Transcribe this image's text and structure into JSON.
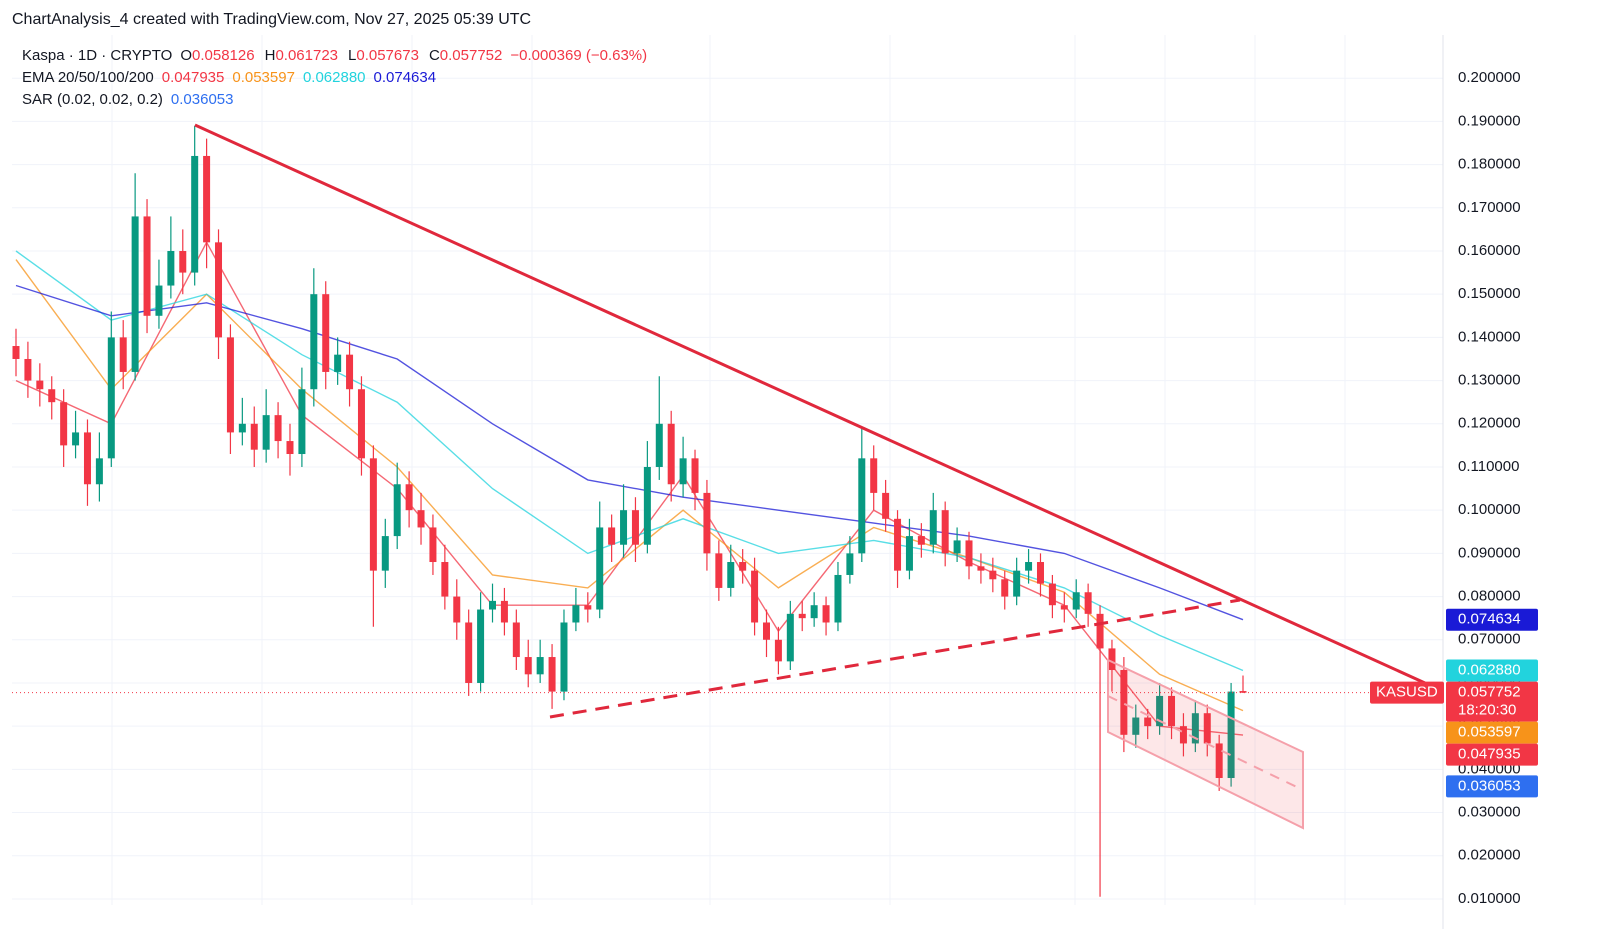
{
  "chart_data": {
    "type": "candlestick",
    "header": "ChartAnalysis_4 created with TradingView.com, Nov 27, 2025 05:39 UTC",
    "symbol": "Kaspa · 1D · CRYPTO",
    "ohlc_labels": [
      "O",
      "H",
      "L",
      "C"
    ],
    "change": "−0.000369 (−0.63%)",
    "up_color": "#089981",
    "down_color": "#f23645",
    "open": [
      0.138,
      0.135,
      0.13,
      0.128,
      0.125,
      0.115,
      0.118,
      0.106,
      0.112,
      0.14,
      0.132,
      0.168,
      0.145,
      0.152,
      0.16,
      0.155,
      0.182,
      0.162,
      0.14,
      0.118,
      0.12,
      0.114,
      0.122,
      0.116,
      0.113,
      0.128,
      0.15,
      0.132,
      0.136,
      0.128,
      0.112,
      0.086,
      0.094,
      0.106,
      0.1,
      0.096,
      0.088,
      0.08,
      0.074,
      0.06,
      0.077,
      0.079,
      0.074,
      0.066,
      0.062,
      0.066,
      0.058,
      0.074,
      0.078,
      0.077,
      0.096,
      0.092,
      0.1,
      0.092,
      0.11,
      0.12,
      0.106,
      0.112,
      0.104,
      0.09,
      0.082,
      0.088,
      0.086,
      0.074,
      0.07,
      0.065,
      0.076,
      0.075,
      0.078,
      0.074,
      0.085,
      0.09,
      0.112,
      0.104,
      0.098,
      0.086,
      0.094,
      0.092,
      0.1,
      0.09,
      0.093,
      0.087,
      0.086,
      0.084,
      0.08,
      0.086,
      0.088,
      0.083,
      0.078,
      0.077,
      0.081,
      0.076,
      0.068,
      0.063,
      0.048,
      0.052,
      0.05,
      0.057,
      0.05,
      0.046,
      0.053,
      0.046,
      0.038,
      0.058126
    ],
    "high": [
      0.142,
      0.139,
      0.134,
      0.131,
      0.128,
      0.123,
      0.121,
      0.118,
      0.146,
      0.144,
      0.178,
      0.172,
      0.158,
      0.168,
      0.165,
      0.189,
      0.186,
      0.165,
      0.143,
      0.126,
      0.124,
      0.128,
      0.125,
      0.12,
      0.133,
      0.156,
      0.153,
      0.14,
      0.139,
      0.131,
      0.115,
      0.098,
      0.111,
      0.109,
      0.104,
      0.099,
      0.092,
      0.084,
      0.077,
      0.081,
      0.083,
      0.082,
      0.077,
      0.07,
      0.07,
      0.069,
      0.077,
      0.082,
      0.081,
      0.102,
      0.099,
      0.106,
      0.103,
      0.116,
      0.131,
      0.123,
      0.117,
      0.114,
      0.107,
      0.093,
      0.092,
      0.091,
      0.089,
      0.077,
      0.073,
      0.079,
      0.079,
      0.081,
      0.08,
      0.088,
      0.094,
      0.119,
      0.115,
      0.107,
      0.1,
      0.098,
      0.097,
      0.104,
      0.102,
      0.096,
      0.095,
      0.09,
      0.089,
      0.086,
      0.089,
      0.091,
      0.09,
      0.085,
      0.081,
      0.084,
      0.083,
      0.078,
      0.07,
      0.066,
      0.055,
      0.054,
      0.06,
      0.059,
      0.053,
      0.056,
      0.055,
      0.048,
      0.06,
      0.061723
    ],
    "low": [
      0.131,
      0.126,
      0.124,
      0.121,
      0.11,
      0.112,
      0.101,
      0.102,
      0.11,
      0.128,
      0.13,
      0.141,
      0.142,
      0.149,
      0.15,
      0.152,
      0.156,
      0.135,
      0.113,
      0.115,
      0.11,
      0.111,
      0.112,
      0.108,
      0.11,
      0.124,
      0.128,
      0.129,
      0.124,
      0.108,
      0.073,
      0.082,
      0.091,
      0.096,
      0.092,
      0.085,
      0.077,
      0.07,
      0.057,
      0.058,
      0.074,
      0.071,
      0.063,
      0.059,
      0.06,
      0.054,
      0.056,
      0.072,
      0.074,
      0.075,
      0.088,
      0.089,
      0.088,
      0.09,
      0.107,
      0.102,
      0.103,
      0.1,
      0.086,
      0.079,
      0.08,
      0.083,
      0.071,
      0.066,
      0.062,
      0.063,
      0.072,
      0.073,
      0.071,
      0.072,
      0.083,
      0.088,
      0.1,
      0.095,
      0.082,
      0.084,
      0.089,
      0.09,
      0.087,
      0.088,
      0.084,
      0.083,
      0.081,
      0.077,
      0.078,
      0.083,
      0.08,
      0.075,
      0.074,
      0.075,
      0.073,
      0.0105,
      0.058,
      0.044,
      0.045,
      0.047,
      0.048,
      0.047,
      0.043,
      0.044,
      0.043,
      0.035,
      0.036,
      0.057673
    ],
    "close": [
      0.135,
      0.13,
      0.128,
      0.125,
      0.115,
      0.118,
      0.106,
      0.112,
      0.14,
      0.132,
      0.168,
      0.145,
      0.152,
      0.16,
      0.155,
      0.182,
      0.162,
      0.14,
      0.118,
      0.12,
      0.114,
      0.122,
      0.116,
      0.113,
      0.128,
      0.15,
      0.132,
      0.136,
      0.128,
      0.112,
      0.086,
      0.094,
      0.106,
      0.1,
      0.096,
      0.088,
      0.08,
      0.074,
      0.06,
      0.077,
      0.079,
      0.074,
      0.066,
      0.062,
      0.066,
      0.058,
      0.074,
      0.078,
      0.077,
      0.096,
      0.092,
      0.1,
      0.092,
      0.11,
      0.12,
      0.106,
      0.112,
      0.104,
      0.09,
      0.082,
      0.088,
      0.086,
      0.074,
      0.07,
      0.065,
      0.076,
      0.075,
      0.078,
      0.074,
      0.085,
      0.09,
      0.112,
      0.104,
      0.098,
      0.086,
      0.094,
      0.092,
      0.1,
      0.09,
      0.093,
      0.087,
      0.086,
      0.084,
      0.08,
      0.086,
      0.088,
      0.083,
      0.078,
      0.077,
      0.081,
      0.076,
      0.068,
      0.063,
      0.048,
      0.052,
      0.05,
      0.057,
      0.05,
      0.046,
      0.053,
      0.046,
      0.038,
      0.058,
      0.057752
    ],
    "ema_title": "EMA 20/50/100/200",
    "ema_x": [
      0,
      8,
      16,
      24,
      32,
      40,
      48,
      56,
      64,
      72,
      80,
      88,
      96,
      103
    ],
    "ema": [
      {
        "color": "#f23645",
        "label": "0.047935",
        "values": [
          0.13,
          0.12,
          0.162,
          0.122,
          0.105,
          0.078,
          0.078,
          0.108,
          0.072,
          0.1,
          0.088,
          0.078,
          0.05,
          0.047935
        ]
      },
      {
        "color": "#f7931a",
        "label": "0.053597",
        "values": [
          0.158,
          0.128,
          0.15,
          0.128,
          0.11,
          0.085,
          0.082,
          0.1,
          0.082,
          0.096,
          0.089,
          0.081,
          0.062,
          0.053597
        ]
      },
      {
        "color": "#22d3dd",
        "label": "0.062880",
        "values": [
          0.16,
          0.144,
          0.15,
          0.136,
          0.125,
          0.105,
          0.09,
          0.098,
          0.09,
          0.093,
          0.089,
          0.082,
          0.071,
          0.06288
        ]
      },
      {
        "color": "#1a1ad6",
        "label": "0.074634",
        "values": [
          0.152,
          0.145,
          0.148,
          0.142,
          0.135,
          0.12,
          0.107,
          0.103,
          0.1,
          0.097,
          0.094,
          0.09,
          0.082,
          0.074634
        ]
      }
    ],
    "sar": {
      "title": "SAR (0.02, 0.02, 0.2)",
      "value": 0.036053,
      "color": "#2e6ff0"
    },
    "symbol_code": "KASUSD",
    "countdown": "18:20:30",
    "ylim": [
      0.0086,
      0.21
    ],
    "yticks": [
      {
        "value": 0.01,
        "label": "0.010000"
      },
      {
        "value": 0.02,
        "label": "0.020000"
      },
      {
        "value": 0.03,
        "label": "0.030000"
      },
      {
        "value": 0.04,
        "label": "0.040000"
      },
      {
        "value": 0.05,
        "label": "0.050000"
      },
      {
        "value": 0.06,
        "label": "0.060000"
      },
      {
        "value": 0.07,
        "label": "0.070000"
      },
      {
        "value": 0.08,
        "label": "0.080000"
      },
      {
        "value": 0.09,
        "label": "0.090000"
      },
      {
        "value": 0.1,
        "label": "0.100000"
      },
      {
        "value": 0.11,
        "label": "0.110000"
      },
      {
        "value": 0.12,
        "label": "0.120000"
      },
      {
        "value": 0.13,
        "label": "0.130000"
      },
      {
        "value": 0.14,
        "label": "0.140000"
      },
      {
        "value": 0.15,
        "label": "0.150000"
      },
      {
        "value": 0.16,
        "label": "0.160000"
      },
      {
        "value": 0.17,
        "label": "0.170000"
      },
      {
        "value": 0.18,
        "label": "0.180000"
      },
      {
        "value": 0.19,
        "label": "0.190000"
      },
      {
        "value": 0.2,
        "label": "0.200000"
      }
    ]
  }
}
